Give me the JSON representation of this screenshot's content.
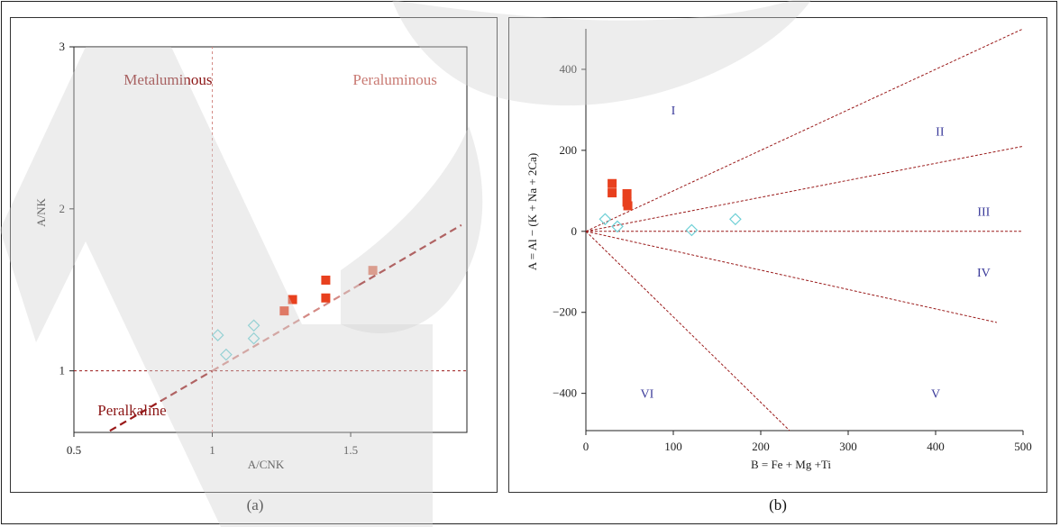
{
  "colors": {
    "boundary_dark": "#9a1a1a",
    "boundary_light": "#d48a85",
    "region_label_dark": "#8b1515",
    "region_label_light": "#c97a73",
    "square_red": "#e8401e",
    "square_salmon": "#e07a62",
    "diamond_cyan": "#6fd0d6",
    "roman_label": "#3a3a9a"
  },
  "panels": {
    "a": {
      "caption": "(a)"
    },
    "b": {
      "caption": "(b)"
    }
  },
  "chart_data": [
    {
      "type": "scatter",
      "title": "",
      "xlabel": "A/CNK",
      "ylabel": "A/NK",
      "xlim": [
        0.5,
        1.92
      ],
      "ylim": [
        0.62,
        3.0
      ],
      "xticks": [
        0.5,
        1,
        1.5
      ],
      "xtick_labels": [
        "0.5",
        "1",
        "1.5"
      ],
      "yticks": [
        1,
        2,
        3
      ],
      "ytick_labels": [
        "1",
        "2",
        "3"
      ],
      "region_labels": [
        {
          "text": "Metaluminous",
          "x": 0.84,
          "y": 2.8,
          "style": "dark"
        },
        {
          "text": "Peraluminous",
          "x": 1.66,
          "y": 2.8,
          "style": "light"
        },
        {
          "text": "Peralkaline",
          "x": 0.71,
          "y": 0.76,
          "style": "dark"
        }
      ],
      "guide_lines": [
        {
          "x1": 1.0,
          "y1": 0.62,
          "x2": 1.0,
          "y2": 3.0,
          "style": "dotted-light"
        },
        {
          "x1": 0.5,
          "y1": 1.0,
          "x2": 1.92,
          "y2": 1.0,
          "style": "dotted-dark"
        }
      ],
      "boundary_segments": [
        {
          "x1": 0.63,
          "y1": 0.63,
          "x2": 1.0,
          "y2": 1.0,
          "style": "dashed-dark"
        },
        {
          "x1": 1.0,
          "y1": 1.0,
          "x2": 1.53,
          "y2": 1.53,
          "style": "dashed-light"
        },
        {
          "x1": 1.53,
          "y1": 1.53,
          "x2": 1.9,
          "y2": 1.9,
          "style": "dashed-dark"
        }
      ],
      "series": [
        {
          "marker": "square",
          "color": "#e8401e",
          "points": [
            [
              1.26,
              1.37
            ],
            [
              1.29,
              1.44
            ],
            [
              1.41,
              1.45
            ],
            [
              1.41,
              1.56
            ]
          ]
        },
        {
          "marker": "square",
          "color": "#e07a62",
          "points": [
            [
              1.58,
              1.62
            ]
          ]
        },
        {
          "marker": "diamond",
          "color": "#6fd0d6",
          "points": [
            [
              1.02,
              1.22
            ],
            [
              1.05,
              1.1
            ],
            [
              1.15,
              1.28
            ],
            [
              1.15,
              1.2
            ]
          ]
        }
      ]
    },
    {
      "type": "scatter",
      "title": "",
      "xlabel": "B = Fe + Mg +Ti",
      "ylabel": "A = Al − (K + Na + 2Ca)",
      "xlim": [
        0,
        500
      ],
      "ylim": [
        -492,
        500
      ],
      "xticks": [
        0,
        100,
        200,
        300,
        400,
        500
      ],
      "xtick_labels": [
        "0",
        "100",
        "200",
        "300",
        "400",
        "500"
      ],
      "yticks": [
        -400,
        -200,
        0,
        200,
        400
      ],
      "ytick_labels": [
        "−400",
        "−200",
        "0",
        "200",
        "400"
      ],
      "region_labels": [
        {
          "text": "I",
          "x": 100,
          "y": 300
        },
        {
          "text": "II",
          "x": 405,
          "y": 247
        },
        {
          "text": "III",
          "x": 455,
          "y": 50
        },
        {
          "text": "IV",
          "x": 455,
          "y": -100
        },
        {
          "text": "V",
          "x": 400,
          "y": -400
        },
        {
          "text": "VI",
          "x": 70,
          "y": -400
        }
      ],
      "boundary_lines": [
        {
          "x1": 0,
          "y1": 0,
          "x2": 500,
          "y2": 500
        },
        {
          "x1": 0,
          "y1": 0,
          "x2": 500,
          "y2": 210
        },
        {
          "x1": 0,
          "y1": 0,
          "x2": 500,
          "y2": 0
        },
        {
          "x1": 0,
          "y1": 0,
          "x2": 470,
          "y2": -225
        },
        {
          "x1": 0,
          "y1": 0,
          "x2": 233,
          "y2": -492
        }
      ],
      "series": [
        {
          "marker": "square",
          "color": "#e8401e",
          "points": [
            [
              30,
              118
            ],
            [
              30,
              95
            ],
            [
              47,
              93
            ],
            [
              47,
              72
            ],
            [
              48,
              63
            ]
          ]
        },
        {
          "marker": "diamond",
          "color": "#6fd0d6",
          "points": [
            [
              22,
              30
            ],
            [
              36,
              12
            ],
            [
              121,
              3
            ],
            [
              171,
              30
            ]
          ]
        }
      ]
    }
  ]
}
